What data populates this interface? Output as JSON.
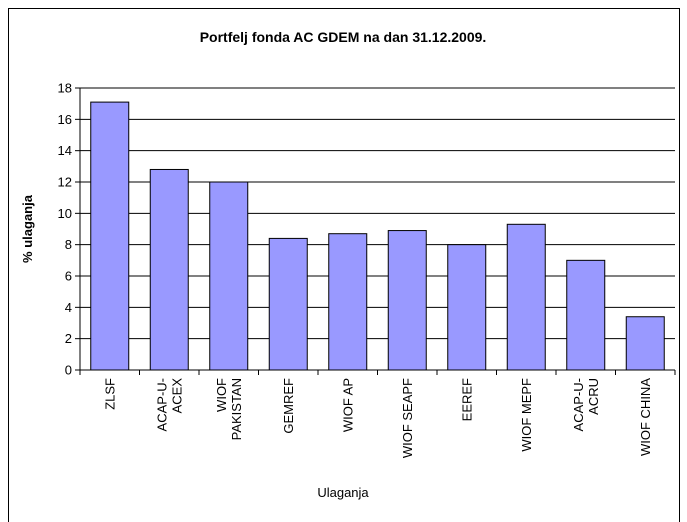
{
  "chart_data": {
    "type": "bar",
    "title": "Portfelj fonda AC  GDEM na dan 31.12.2009.",
    "x_label": "Ulaganja",
    "y_label": "% ulaganja",
    "categories": [
      "ZLSF",
      "ACAP-U-\nACEX",
      "WIOF\nPAKISTAN",
      "GEMREF",
      "WIOF AP",
      "WIOF SEAPF",
      "EEREF",
      "WIOF MEPF",
      "ACAP-U-\nACRU",
      "WIOF CHINA"
    ],
    "values": [
      17.1,
      12.8,
      12.0,
      8.4,
      8.7,
      8.9,
      8.0,
      9.3,
      7.0,
      3.4
    ],
    "color": "#9999ff",
    "ylim": [
      0,
      18
    ],
    "yticks": [
      0,
      2,
      4,
      6,
      8,
      10,
      12,
      14,
      16,
      18
    ],
    "grid": true
  }
}
